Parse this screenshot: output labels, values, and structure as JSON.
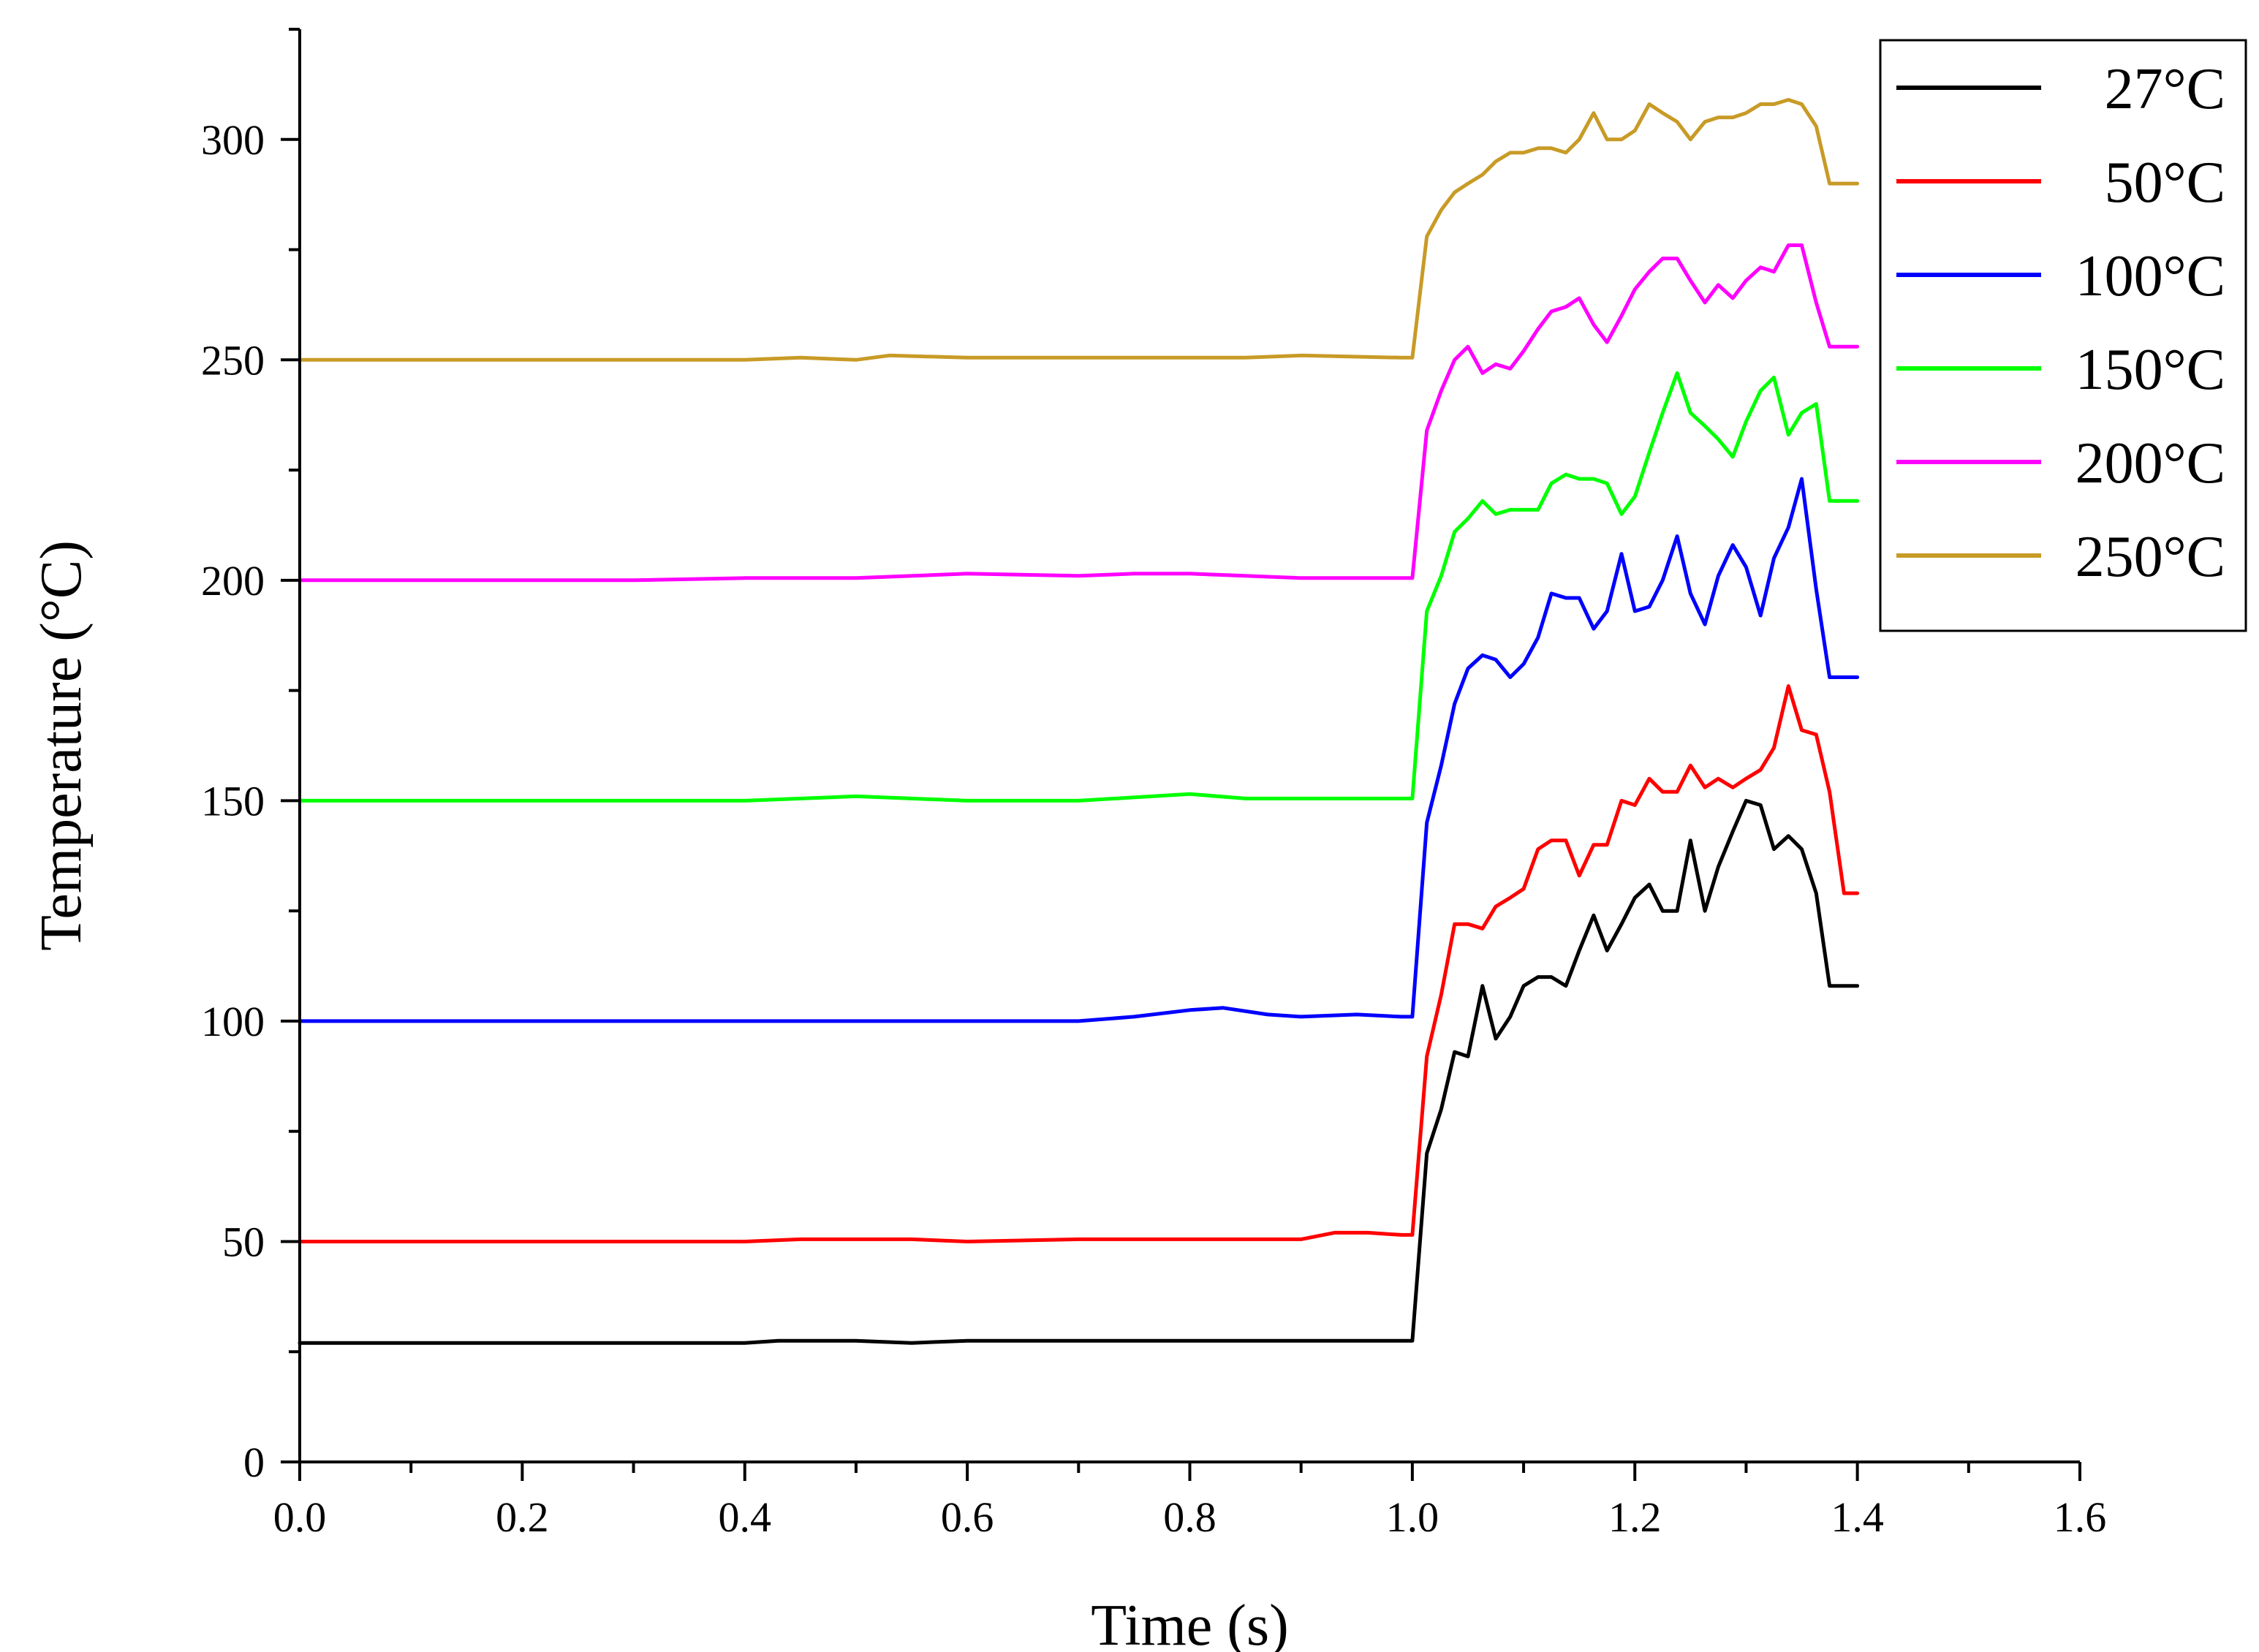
{
  "chart_data": {
    "type": "line",
    "title": "",
    "xlabel": "Time (s)",
    "ylabel": "Temperature (°C)",
    "xlim": [
      0.0,
      1.6
    ],
    "ylim": [
      0,
      325
    ],
    "x_ticks": [
      0.0,
      0.2,
      0.4,
      0.6,
      0.8,
      1.0,
      1.2,
      1.4,
      1.6
    ],
    "x_tick_labels": [
      "0.0",
      "0.2",
      "0.4",
      "0.6",
      "0.8",
      "1.0",
      "1.2",
      "1.4",
      "1.6"
    ],
    "y_ticks": [
      0,
      50,
      100,
      150,
      200,
      250,
      300
    ],
    "y_tick_labels": [
      "0",
      "50",
      "100",
      "150",
      "200",
      "250",
      "300"
    ],
    "grid": false,
    "legend_position": "top-right",
    "series": [
      {
        "name": "27°C",
        "color": "#000000",
        "x": [
          0.0,
          0.2,
          0.4,
          0.43,
          0.5,
          0.55,
          0.6,
          0.7,
          0.8,
          0.9,
          1.0,
          1.013,
          1.026,
          1.038,
          1.05,
          1.063,
          1.075,
          1.088,
          1.1,
          1.113,
          1.125,
          1.138,
          1.15,
          1.163,
          1.175,
          1.188,
          1.2,
          1.213,
          1.225,
          1.238,
          1.25,
          1.263,
          1.275,
          1.288,
          1.3,
          1.313,
          1.325,
          1.338,
          1.35,
          1.363,
          1.375,
          1.388,
          1.4
        ],
        "y": [
          27,
          27,
          27,
          27.5,
          27.5,
          27,
          27.5,
          27.5,
          27.5,
          27.5,
          27.5,
          70,
          80,
          93,
          92,
          108,
          96,
          101,
          108,
          110,
          110,
          108,
          116,
          124,
          116,
          122,
          128,
          131,
          125,
          125,
          141,
          125,
          135,
          143,
          150,
          149,
          139,
          142,
          139,
          129,
          108,
          108,
          108
        ]
      },
      {
        "name": "50°C",
        "color": "#ff0000",
        "x": [
          0.0,
          0.2,
          0.4,
          0.45,
          0.55,
          0.6,
          0.7,
          0.8,
          0.9,
          0.93,
          0.96,
          0.99,
          1.0,
          1.013,
          1.026,
          1.038,
          1.05,
          1.063,
          1.075,
          1.088,
          1.1,
          1.113,
          1.125,
          1.138,
          1.15,
          1.163,
          1.175,
          1.188,
          1.2,
          1.213,
          1.225,
          1.238,
          1.25,
          1.263,
          1.275,
          1.288,
          1.3,
          1.313,
          1.325,
          1.338,
          1.35,
          1.363,
          1.375,
          1.388,
          1.4
        ],
        "y": [
          50,
          50,
          50,
          50.5,
          50.5,
          50,
          50.5,
          50.5,
          50.5,
          52,
          52,
          51.5,
          51.5,
          92,
          106,
          122,
          122,
          121,
          126,
          128,
          130,
          139,
          141,
          141,
          133,
          140,
          140,
          150,
          149,
          155,
          152,
          152,
          158,
          153,
          155,
          153,
          155,
          157,
          162,
          176,
          166,
          165,
          152,
          129,
          129
        ]
      },
      {
        "name": "100°C",
        "color": "#0000ff",
        "x": [
          0.0,
          0.2,
          0.4,
          0.6,
          0.7,
          0.75,
          0.8,
          0.83,
          0.87,
          0.9,
          0.95,
          0.99,
          1.0,
          1.013,
          1.026,
          1.038,
          1.05,
          1.063,
          1.075,
          1.088,
          1.1,
          1.113,
          1.125,
          1.138,
          1.15,
          1.163,
          1.175,
          1.188,
          1.2,
          1.213,
          1.225,
          1.238,
          1.25,
          1.263,
          1.275,
          1.288,
          1.3,
          1.313,
          1.325,
          1.338,
          1.35,
          1.363,
          1.375,
          1.388,
          1.4
        ],
        "y": [
          100,
          100,
          100,
          100,
          100,
          101,
          102.5,
          103,
          101.5,
          101,
          101.5,
          101,
          101,
          145,
          158,
          172,
          180,
          183,
          182,
          178,
          181,
          187,
          197,
          196,
          196,
          189,
          193,
          206,
          193,
          194,
          200,
          210,
          197,
          190,
          201,
          208,
          203,
          192,
          205,
          212,
          223,
          198,
          178,
          178,
          178
        ]
      },
      {
        "name": "150°C",
        "color": "#00ff00",
        "x": [
          0.0,
          0.2,
          0.4,
          0.5,
          0.55,
          0.6,
          0.7,
          0.8,
          0.85,
          0.9,
          0.99,
          1.0,
          1.013,
          1.026,
          1.038,
          1.05,
          1.063,
          1.075,
          1.088,
          1.1,
          1.113,
          1.125,
          1.138,
          1.15,
          1.163,
          1.175,
          1.188,
          1.2,
          1.213,
          1.225,
          1.238,
          1.25,
          1.263,
          1.275,
          1.288,
          1.3,
          1.313,
          1.325,
          1.338,
          1.35,
          1.363,
          1.375,
          1.388,
          1.4
        ],
        "y": [
          150,
          150,
          150,
          151,
          150.5,
          150,
          150,
          151.5,
          150.5,
          150.5,
          150.5,
          150.5,
          193,
          201,
          211,
          214,
          218,
          215,
          216,
          216,
          216,
          222,
          224,
          223,
          223,
          222,
          215,
          219,
          229,
          238,
          247,
          238,
          235,
          232,
          228,
          236,
          243,
          246,
          233,
          238,
          240,
          218,
          218,
          218
        ]
      },
      {
        "name": "200°C",
        "color": "#ff00ff",
        "x": [
          0.0,
          0.2,
          0.3,
          0.4,
          0.5,
          0.6,
          0.7,
          0.75,
          0.8,
          0.85,
          0.9,
          0.99,
          1.0,
          1.013,
          1.026,
          1.038,
          1.05,
          1.063,
          1.075,
          1.088,
          1.1,
          1.113,
          1.125,
          1.138,
          1.15,
          1.163,
          1.175,
          1.188,
          1.2,
          1.213,
          1.225,
          1.238,
          1.25,
          1.263,
          1.275,
          1.288,
          1.3,
          1.313,
          1.325,
          1.338,
          1.35,
          1.363,
          1.375,
          1.388,
          1.4
        ],
        "y": [
          200,
          200,
          200,
          200.5,
          200.5,
          201.5,
          201,
          201.5,
          201.5,
          201,
          200.5,
          200.5,
          200.5,
          234,
          243,
          250,
          253,
          247,
          249,
          248,
          252,
          257,
          261,
          262,
          264,
          258,
          254,
          260,
          266,
          270,
          273,
          273,
          268,
          263,
          267,
          264,
          268,
          271,
          270,
          276,
          276,
          263,
          253,
          253,
          253
        ]
      },
      {
        "name": "250°C",
        "color": "#c89b27",
        "x": [
          0.0,
          0.2,
          0.4,
          0.45,
          0.5,
          0.53,
          0.6,
          0.7,
          0.8,
          0.85,
          0.9,
          0.99,
          1.0,
          1.013,
          1.026,
          1.038,
          1.05,
          1.063,
          1.075,
          1.088,
          1.1,
          1.113,
          1.125,
          1.138,
          1.15,
          1.163,
          1.175,
          1.188,
          1.2,
          1.213,
          1.225,
          1.238,
          1.25,
          1.263,
          1.275,
          1.288,
          1.3,
          1.313,
          1.325,
          1.338,
          1.35,
          1.363,
          1.375,
          1.388,
          1.4
        ],
        "y": [
          250,
          250,
          250,
          250.5,
          250,
          251,
          250.5,
          250.5,
          250.5,
          250.5,
          251,
          250.5,
          250.5,
          278,
          284,
          288,
          290,
          292,
          295,
          297,
          297,
          298,
          298,
          297,
          300,
          306,
          300,
          300,
          302,
          308,
          306,
          304,
          300,
          304,
          305,
          305,
          306,
          308,
          308,
          309,
          308,
          303,
          290,
          290,
          290
        ]
      }
    ]
  }
}
